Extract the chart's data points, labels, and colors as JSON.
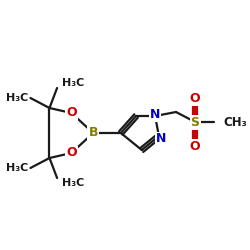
{
  "background_color": "#ffffff",
  "figsize": [
    2.5,
    2.5
  ],
  "dpi": 100,
  "colors": {
    "black": "#1a1a1a",
    "blue": "#0000cc",
    "red": "#cc0000",
    "olive": "#808000",
    "white": "#ffffff"
  },
  "methyl_labels": [
    "H₃C",
    "H₃C",
    "H₃C",
    "H₃C"
  ],
  "atom_labels": {
    "B": "B",
    "O": "O",
    "N": "N",
    "S": "S",
    "CH3": "CH₃"
  }
}
